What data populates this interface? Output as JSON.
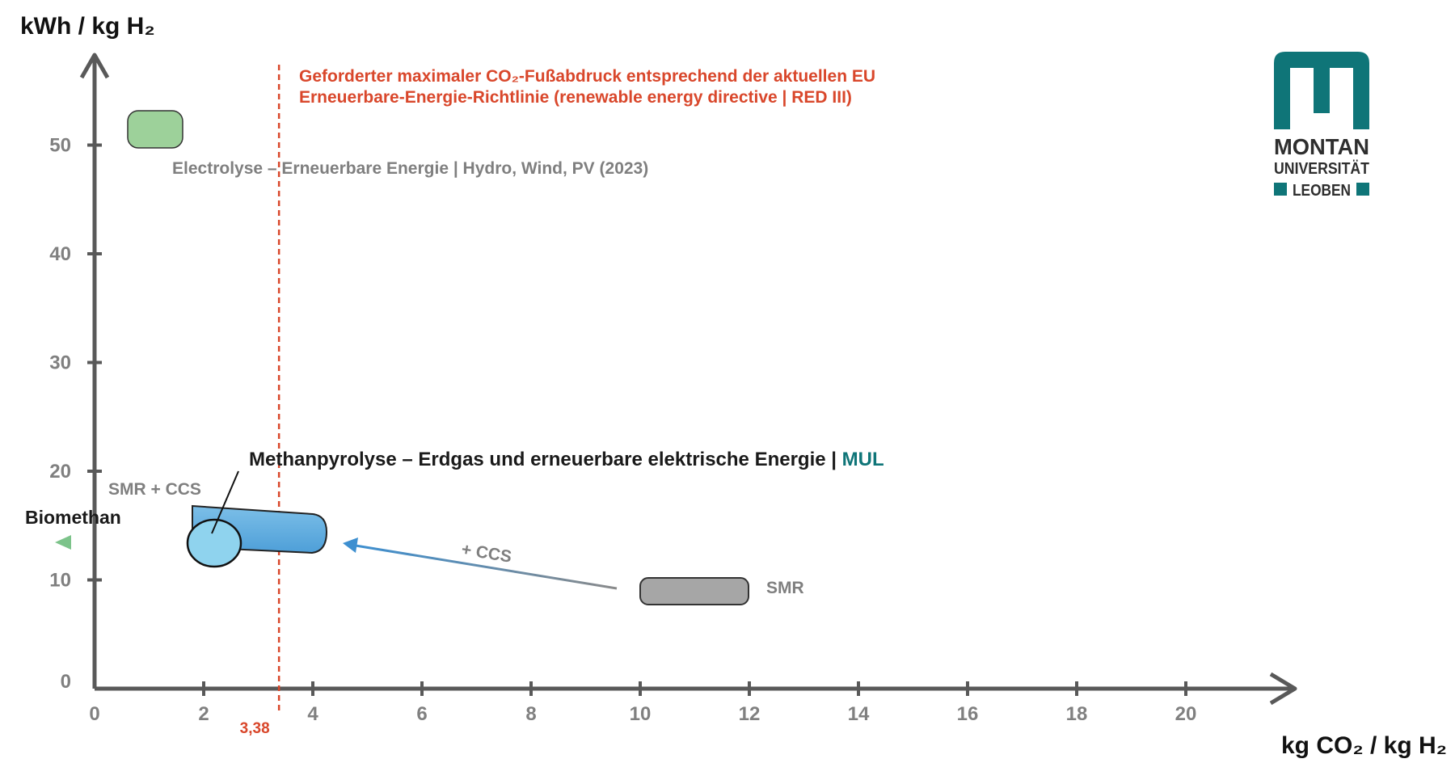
{
  "chart_data": {
    "type": "scatter",
    "xlabel": "kg CO₂ / kg H₂",
    "ylabel": "kWh / kg H₂",
    "xlim": [
      0,
      22
    ],
    "ylim": [
      0,
      57
    ],
    "x_ticks": [
      "0",
      "2",
      "4",
      "6",
      "8",
      "10",
      "12",
      "14",
      "16",
      "18",
      "20"
    ],
    "y_ticks": [
      "0",
      "10",
      "20",
      "30",
      "40",
      "50"
    ],
    "grid": false,
    "threshold": {
      "x": 3.38,
      "label": "3,38",
      "annotation_line1": "Geforderter maximaler CO₂-Fußabdruck entsprechend der aktuellen EU",
      "annotation_line2": "Erneuerbare-Energie-Richtlinie (renewable energy directive | RED III)",
      "color": "#d9472b"
    },
    "regions": [
      {
        "name": "Electrolyse – Erneuerbare Energie | Hydro, Wind, PV (2023)",
        "x": [
          0.8,
          1.6
        ],
        "y": [
          51.8,
          51.8
        ],
        "color": "#9dd19a"
      },
      {
        "name": "SMR + CCS",
        "x": [
          1.8,
          4.0
        ],
        "y": [
          15.5,
          12.8
        ],
        "color": "#5eaee0"
      },
      {
        "name": "Methanpyrolyse – Erdgas und erneuerbare elektrische Energie | MUL",
        "x": [
          2.2,
          2.2
        ],
        "y": [
          13.5,
          13.5
        ],
        "color": "#8fd3ee"
      },
      {
        "name": "SMR",
        "x": [
          10.2,
          11.8
        ],
        "y": [
          9.0,
          9.0
        ],
        "color": "#a6a6a6"
      }
    ],
    "arrows": [
      {
        "label": "+ CCS",
        "from": [
          9.6,
          9.3
        ],
        "to": [
          4.6,
          13.4
        ]
      },
      {
        "label": "Biomethan",
        "from": [
          1.6,
          13.5
        ],
        "to": [
          -0.7,
          13.5
        ]
      }
    ]
  },
  "labels": {
    "electrolyse": "Electrolyse – Erneuerbare Energie | Hydro, Wind, PV (2023)",
    "methanpyrolyse_main": "Methanpyrolyse – Erdgas und erneuerbare elektrische Energie | ",
    "methanpyrolyse_mul": "MUL",
    "smr_ccs": "SMR + CCS",
    "biomethan": "Biomethan",
    "ccs_arrow": "+ CCS",
    "smr": "SMR"
  },
  "logo": {
    "line1": "MONTAN",
    "line2": "UNIVERSITÄT",
    "line3": "LEOBEN",
    "color": "#0f7578"
  },
  "colors": {
    "axis": "#595959",
    "mul": "#0f7578"
  }
}
